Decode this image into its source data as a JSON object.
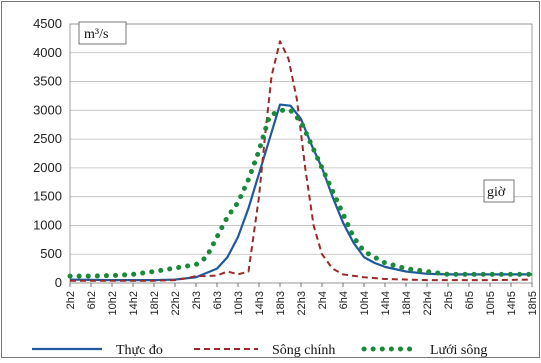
{
  "chart_data": {
    "type": "line",
    "x_unit_label": "giờ",
    "y_unit_label": "m³/s",
    "ylim": [
      0,
      4500
    ],
    "y_ticks": [
      0,
      500,
      1000,
      1500,
      2000,
      2500,
      3000,
      3500,
      4000,
      4500
    ],
    "grid": "horizontal",
    "legend_position": "bottom",
    "x_tick_labels": [
      "2h2",
      "6h2",
      "10h2",
      "14h2",
      "18h2",
      "22h2",
      "2h3",
      "6h3",
      "10h3",
      "14h3",
      "18h3",
      "22h3",
      "2h4",
      "6h4",
      "10h4",
      "14h4",
      "18h4",
      "22h4",
      "2h5",
      "6h5",
      "10h5",
      "14h5",
      "18h5"
    ],
    "series": [
      {
        "name": "Thực đo",
        "color": "#1f5a9e",
        "style": "solid",
        "points": [
          [
            0,
            60
          ],
          [
            2,
            50
          ],
          [
            4,
            50
          ],
          [
            5,
            60
          ],
          [
            6,
            100
          ],
          [
            7,
            250
          ],
          [
            7.5,
            450
          ],
          [
            8,
            800
          ],
          [
            8.5,
            1300
          ],
          [
            9,
            1900
          ],
          [
            9.5,
            2500
          ],
          [
            10,
            3100
          ],
          [
            10.5,
            3080
          ],
          [
            11,
            2850
          ],
          [
            11.5,
            2400
          ],
          [
            12,
            2000
          ],
          [
            12.5,
            1500
          ],
          [
            13,
            1050
          ],
          [
            13.5,
            700
          ],
          [
            14,
            450
          ],
          [
            14.5,
            350
          ],
          [
            15,
            280
          ],
          [
            16,
            200
          ],
          [
            17,
            160
          ],
          [
            18,
            150
          ],
          [
            20,
            150
          ],
          [
            22,
            150
          ]
        ]
      },
      {
        "name": "Sông chính",
        "color": "#9c2a2a",
        "style": "dashed",
        "points": [
          [
            0,
            40
          ],
          [
            2,
            40
          ],
          [
            4,
            40
          ],
          [
            5,
            50
          ],
          [
            5.5,
            80
          ],
          [
            6,
            120
          ],
          [
            6.5,
            120
          ],
          [
            7,
            130
          ],
          [
            7.5,
            200
          ],
          [
            8,
            150
          ],
          [
            8.5,
            200
          ],
          [
            9,
            1500
          ],
          [
            9.3,
            2600
          ],
          [
            9.6,
            3600
          ],
          [
            10,
            4200
          ],
          [
            10.4,
            3900
          ],
          [
            10.8,
            3200
          ],
          [
            11.2,
            2000
          ],
          [
            11.6,
            1000
          ],
          [
            12,
            500
          ],
          [
            12.5,
            250
          ],
          [
            13,
            150
          ],
          [
            14,
            100
          ],
          [
            15,
            70
          ],
          [
            17,
            50
          ],
          [
            20,
            50
          ],
          [
            22,
            60
          ]
        ]
      },
      {
        "name": "Lưới sông",
        "color": "#1a8a3a",
        "style": "dotted",
        "points": [
          [
            0,
            120
          ],
          [
            1,
            120
          ],
          [
            2,
            130
          ],
          [
            3,
            150
          ],
          [
            4,
            200
          ],
          [
            5,
            260
          ],
          [
            6,
            320
          ],
          [
            6.5,
            450
          ],
          [
            7,
            800
          ],
          [
            7.5,
            1150
          ],
          [
            8,
            1400
          ],
          [
            8.5,
            1800
          ],
          [
            9,
            2300
          ],
          [
            9.5,
            2900
          ],
          [
            10,
            3000
          ],
          [
            10.5,
            3000
          ],
          [
            11,
            2800
          ],
          [
            11.5,
            2400
          ],
          [
            12,
            2000
          ],
          [
            12.5,
            1600
          ],
          [
            13,
            1200
          ],
          [
            13.5,
            800
          ],
          [
            14,
            550
          ],
          [
            15,
            350
          ],
          [
            16,
            250
          ],
          [
            17,
            200
          ],
          [
            18,
            150
          ],
          [
            20,
            150
          ],
          [
            22,
            150
          ]
        ]
      }
    ]
  }
}
